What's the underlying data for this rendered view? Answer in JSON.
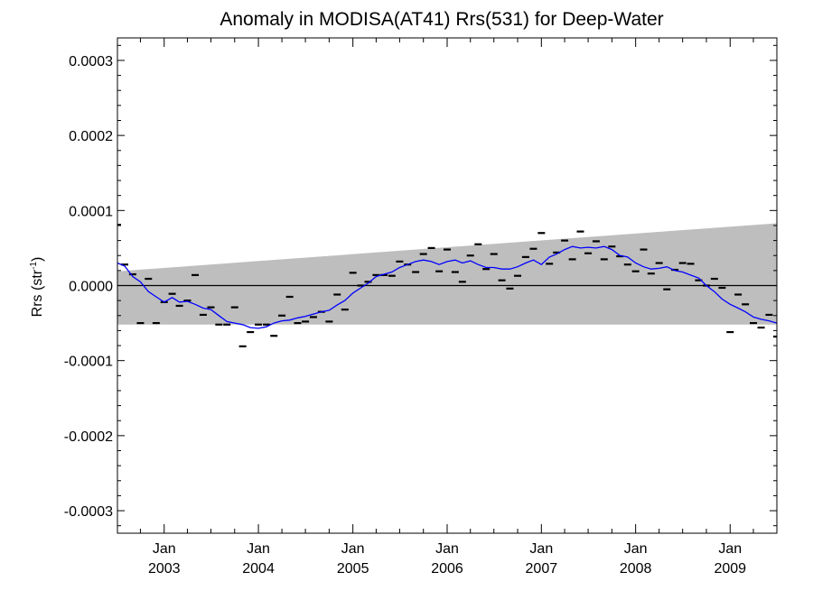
{
  "chart_data": {
    "type": "scatter",
    "title": "Anomaly in MODISA(AT41) Rrs(531) for Deep-Water",
    "ylabel": {
      "main": "Rrs (str",
      "sup": "-1",
      "close": ")"
    },
    "xlabel": "",
    "ylim": [
      -0.00033,
      0.00033
    ],
    "xlim": [
      "2002-07-04",
      "2009-07-01"
    ],
    "y_ticks": [
      {
        "value": 0.0003,
        "label": "0.0003"
      },
      {
        "value": 0.0002,
        "label": "0.0002"
      },
      {
        "value": 0.0001,
        "label": "0.0001"
      },
      {
        "value": 0.0,
        "label": "0.0000"
      },
      {
        "value": -0.0001,
        "label": "-0.0001"
      },
      {
        "value": -0.0002,
        "label": "-0.0002"
      },
      {
        "value": -0.0003,
        "label": "-0.0003"
      }
    ],
    "x_ticks": [
      {
        "date": "2003-01-01",
        "month": "Jan",
        "year": "2003"
      },
      {
        "date": "2004-01-01",
        "month": "Jan",
        "year": "2004"
      },
      {
        "date": "2005-01-01",
        "month": "Jan",
        "year": "2005"
      },
      {
        "date": "2006-01-01",
        "month": "Jan",
        "year": "2006"
      },
      {
        "date": "2007-01-01",
        "month": "Jan",
        "year": "2007"
      },
      {
        "date": "2008-01-01",
        "month": "Jan",
        "year": "2008"
      },
      {
        "date": "2009-01-01",
        "month": "Jan",
        "year": "2009"
      }
    ],
    "grid": false,
    "zero_line": 0.0,
    "band": {
      "color": "#bebebe",
      "x": [
        "2002-07-04",
        "2009-07-01"
      ],
      "upper": [
        1.9e-05,
        8.3e-05
      ],
      "lower": [
        -5.2e-05,
        -5.2e-05
      ]
    },
    "series": [
      {
        "style": "dash-markers",
        "color": "#000000",
        "points": [
          [
            "2002-07-04",
            8.1e-05
          ],
          [
            "2002-08-01",
            2.8e-05
          ],
          [
            "2002-09-01",
            1.5e-05
          ],
          [
            "2002-10-01",
            -5e-05
          ],
          [
            "2002-11-01",
            9e-06
          ],
          [
            "2002-12-01",
            -5e-05
          ],
          [
            "2003-01-01",
            -2.2e-05
          ],
          [
            "2003-02-01",
            -1.1e-05
          ],
          [
            "2003-03-01",
            -2.7e-05
          ],
          [
            "2003-04-01",
            -2e-05
          ],
          [
            "2003-05-01",
            1.4e-05
          ],
          [
            "2003-06-01",
            -3.9e-05
          ],
          [
            "2003-07-01",
            -2.9e-05
          ],
          [
            "2003-08-01",
            -5.2e-05
          ],
          [
            "2003-09-01",
            -5.2e-05
          ],
          [
            "2003-10-01",
            -2.9e-05
          ],
          [
            "2003-11-01",
            -8.1e-05
          ],
          [
            "2003-12-01",
            -6.2e-05
          ],
          [
            "2004-01-01",
            -5.2e-05
          ],
          [
            "2004-02-01",
            -5.2e-05
          ],
          [
            "2004-03-01",
            -6.7e-05
          ],
          [
            "2004-04-01",
            -4e-05
          ],
          [
            "2004-05-01",
            -1.5e-05
          ],
          [
            "2004-06-01",
            -5e-05
          ],
          [
            "2004-07-01",
            -4.8e-05
          ],
          [
            "2004-08-01",
            -4.2e-05
          ],
          [
            "2004-09-01",
            -3.5e-05
          ],
          [
            "2004-10-01",
            -4.8e-05
          ],
          [
            "2004-11-01",
            -1.2e-05
          ],
          [
            "2004-12-01",
            -3.2e-05
          ],
          [
            "2005-01-01",
            1.7e-05
          ],
          [
            "2005-02-01",
            0.0
          ],
          [
            "2005-03-01",
            5e-06
          ],
          [
            "2005-04-01",
            1.4e-05
          ],
          [
            "2005-05-01",
            1.4e-05
          ],
          [
            "2005-06-01",
            1.3e-05
          ],
          [
            "2005-07-01",
            3.2e-05
          ],
          [
            "2005-08-01",
            2.8e-05
          ],
          [
            "2005-09-01",
            1.8e-05
          ],
          [
            "2005-10-01",
            4.2e-05
          ],
          [
            "2005-11-01",
            5e-05
          ],
          [
            "2005-12-01",
            1.9e-05
          ],
          [
            "2006-01-01",
            4.8e-05
          ],
          [
            "2006-02-01",
            1.8e-05
          ],
          [
            "2006-03-01",
            5e-06
          ],
          [
            "2006-04-01",
            4e-05
          ],
          [
            "2006-05-01",
            5.5e-05
          ],
          [
            "2006-06-01",
            2.2e-05
          ],
          [
            "2006-07-01",
            4.2e-05
          ],
          [
            "2006-08-01",
            7e-06
          ],
          [
            "2006-09-01",
            -4e-06
          ],
          [
            "2006-10-01",
            1.3e-05
          ],
          [
            "2006-11-01",
            3.8e-05
          ],
          [
            "2006-12-01",
            4.9e-05
          ],
          [
            "2007-01-01",
            7e-05
          ],
          [
            "2007-02-01",
            2.9e-05
          ],
          [
            "2007-03-01",
            4.4e-05
          ],
          [
            "2007-04-01",
            6e-05
          ],
          [
            "2007-05-01",
            3.5e-05
          ],
          [
            "2007-06-01",
            7.2e-05
          ],
          [
            "2007-07-01",
            4.3e-05
          ],
          [
            "2007-08-01",
            5.9e-05
          ],
          [
            "2007-09-01",
            3.5e-05
          ],
          [
            "2007-10-01",
            5.2e-05
          ],
          [
            "2007-11-01",
            3.9e-05
          ],
          [
            "2007-12-01",
            2.8e-05
          ],
          [
            "2008-01-01",
            1.9e-05
          ],
          [
            "2008-02-01",
            4.8e-05
          ],
          [
            "2008-03-01",
            1.6e-05
          ],
          [
            "2008-04-01",
            3e-05
          ],
          [
            "2008-05-01",
            -5e-06
          ],
          [
            "2008-06-01",
            2.1e-05
          ],
          [
            "2008-07-01",
            3e-05
          ],
          [
            "2008-08-01",
            2.9e-05
          ],
          [
            "2008-09-01",
            7e-06
          ],
          [
            "2008-10-01",
            0.0
          ],
          [
            "2008-11-01",
            9e-06
          ],
          [
            "2008-12-01",
            -3e-06
          ],
          [
            "2009-01-01",
            -6.2e-05
          ],
          [
            "2009-02-01",
            -1.2e-05
          ],
          [
            "2009-03-01",
            -2.5e-05
          ],
          [
            "2009-04-01",
            -5e-05
          ],
          [
            "2009-05-01",
            -5.6e-05
          ],
          [
            "2009-06-01",
            -3.9e-05
          ],
          [
            "2009-07-01",
            -6.8e-05
          ]
        ]
      },
      {
        "style": "line",
        "color": "#0000ff",
        "points": [
          [
            "2002-07-04",
            3e-05
          ],
          [
            "2002-08-01",
            2.6e-05
          ],
          [
            "2002-09-01",
            1.2e-05
          ],
          [
            "2002-10-01",
            5e-06
          ],
          [
            "2002-11-01",
            -8e-06
          ],
          [
            "2002-12-01",
            -1.5e-05
          ],
          [
            "2003-01-01",
            -2.2e-05
          ],
          [
            "2003-02-01",
            -1.6e-05
          ],
          [
            "2003-03-01",
            -2.2e-05
          ],
          [
            "2003-04-01",
            -2.1e-05
          ],
          [
            "2003-05-01",
            -2.5e-05
          ],
          [
            "2003-06-01",
            -3e-05
          ],
          [
            "2003-07-01",
            -3.2e-05
          ],
          [
            "2003-08-01",
            -4e-05
          ],
          [
            "2003-09-01",
            -4.8e-05
          ],
          [
            "2003-10-01",
            -5e-05
          ],
          [
            "2003-11-01",
            -5.2e-05
          ],
          [
            "2003-12-01",
            -5.6e-05
          ],
          [
            "2004-01-01",
            -5.7e-05
          ],
          [
            "2004-02-01",
            -5.5e-05
          ],
          [
            "2004-03-01",
            -5e-05
          ],
          [
            "2004-04-01",
            -4.7e-05
          ],
          [
            "2004-05-01",
            -4.6e-05
          ],
          [
            "2004-06-01",
            -4.3e-05
          ],
          [
            "2004-07-01",
            -4.1e-05
          ],
          [
            "2004-08-01",
            -3.8e-05
          ],
          [
            "2004-09-01",
            -3.5e-05
          ],
          [
            "2004-10-01",
            -3.3e-05
          ],
          [
            "2004-11-01",
            -2.6e-05
          ],
          [
            "2004-12-01",
            -2e-05
          ],
          [
            "2005-01-01",
            -1e-05
          ],
          [
            "2005-02-01",
            -3e-06
          ],
          [
            "2005-03-01",
            3e-06
          ],
          [
            "2005-04-01",
            1.2e-05
          ],
          [
            "2005-05-01",
            1.5e-05
          ],
          [
            "2005-06-01",
            1.8e-05
          ],
          [
            "2005-07-01",
            2.4e-05
          ],
          [
            "2005-08-01",
            2.8e-05
          ],
          [
            "2005-09-01",
            3.2e-05
          ],
          [
            "2005-10-01",
            3.4e-05
          ],
          [
            "2005-11-01",
            3.2e-05
          ],
          [
            "2005-12-01",
            2.8e-05
          ],
          [
            "2006-01-01",
            3.2e-05
          ],
          [
            "2006-02-01",
            3.4e-05
          ],
          [
            "2006-03-01",
            3e-05
          ],
          [
            "2006-04-01",
            3.3e-05
          ],
          [
            "2006-05-01",
            2.8e-05
          ],
          [
            "2006-06-01",
            2.4e-05
          ],
          [
            "2006-07-01",
            2.4e-05
          ],
          [
            "2006-08-01",
            2.2e-05
          ],
          [
            "2006-09-01",
            2.2e-05
          ],
          [
            "2006-10-01",
            2.5e-05
          ],
          [
            "2006-11-01",
            3e-05
          ],
          [
            "2006-12-01",
            3.4e-05
          ],
          [
            "2007-01-01",
            2.8e-05
          ],
          [
            "2007-02-01",
            3.8e-05
          ],
          [
            "2007-03-01",
            4.2e-05
          ],
          [
            "2007-04-01",
            4.8e-05
          ],
          [
            "2007-05-01",
            5.2e-05
          ],
          [
            "2007-06-01",
            5e-05
          ],
          [
            "2007-07-01",
            5.1e-05
          ],
          [
            "2007-08-01",
            5e-05
          ],
          [
            "2007-09-01",
            5.2e-05
          ],
          [
            "2007-10-01",
            4.8e-05
          ],
          [
            "2007-11-01",
            4e-05
          ],
          [
            "2007-12-01",
            3.8e-05
          ],
          [
            "2008-01-01",
            3e-05
          ],
          [
            "2008-02-01",
            2.5e-05
          ],
          [
            "2008-03-01",
            2.2e-05
          ],
          [
            "2008-04-01",
            2.3e-05
          ],
          [
            "2008-05-01",
            2.5e-05
          ],
          [
            "2008-06-01",
            2e-05
          ],
          [
            "2008-07-01",
            1.8e-05
          ],
          [
            "2008-08-01",
            1.4e-05
          ],
          [
            "2008-09-01",
            1e-05
          ],
          [
            "2008-10-01",
            0.0
          ],
          [
            "2008-11-01",
            -8e-06
          ],
          [
            "2008-12-01",
            -1.8e-05
          ],
          [
            "2009-01-01",
            -2.5e-05
          ],
          [
            "2009-02-01",
            -3e-05
          ],
          [
            "2009-03-01",
            -3.5e-05
          ],
          [
            "2009-04-01",
            -4.2e-05
          ],
          [
            "2009-05-01",
            -4.5e-05
          ],
          [
            "2009-06-01",
            -4.7e-05
          ],
          [
            "2009-07-01",
            -5e-05
          ]
        ]
      }
    ]
  }
}
